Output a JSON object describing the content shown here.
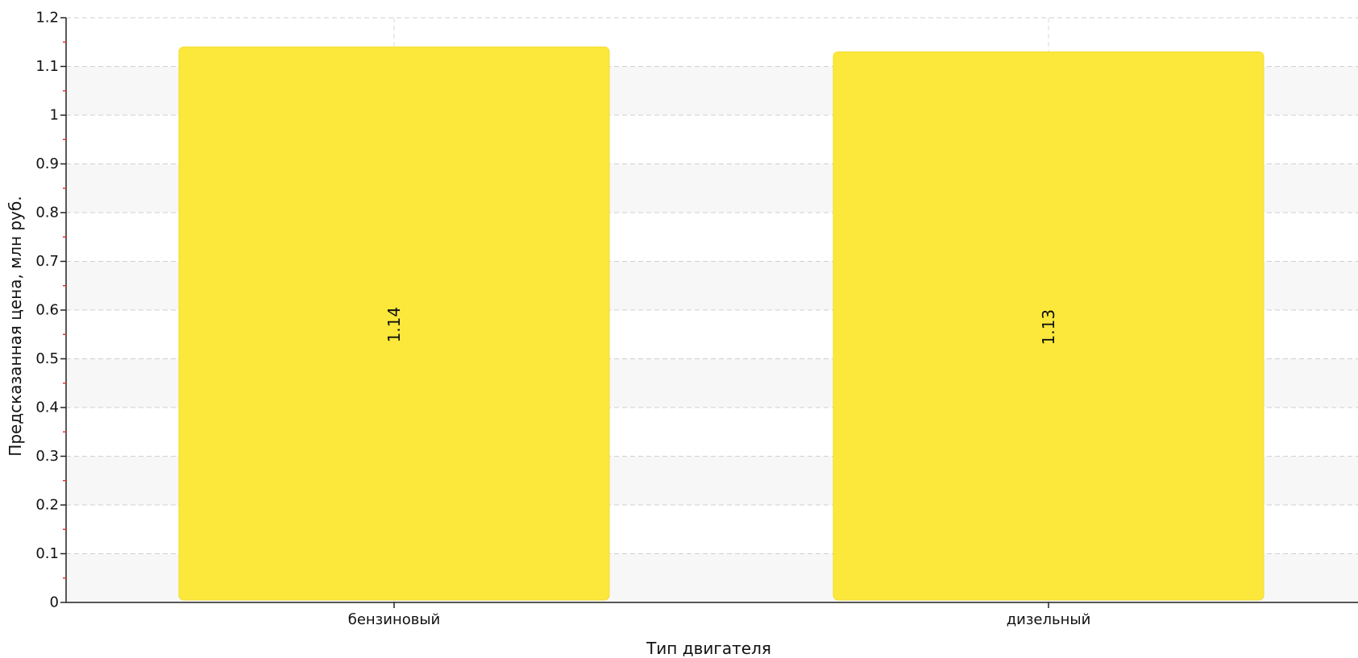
{
  "chart_data": {
    "type": "bar",
    "categories": [
      "бензиновый",
      "дизельный"
    ],
    "values": [
      1.14,
      1.13
    ],
    "data_labels": [
      "1.14",
      "1.13"
    ],
    "title": "",
    "xlabel": "Тип двигателя",
    "ylabel": "Предсказанная цена, млн руб.",
    "ylim": [
      0,
      1.2
    ],
    "yticks": [
      0,
      0.1,
      0.2,
      0.3,
      0.4,
      0.5,
      0.6,
      0.7,
      0.8,
      0.9,
      1,
      1.1,
      1.2
    ],
    "ytick_labels": [
      "0",
      "0.1",
      "0.2",
      "0.3",
      "0.4",
      "0.5",
      "0.6",
      "0.7",
      "0.8",
      "0.9",
      "1",
      "1.1",
      "1.2"
    ],
    "grid": true,
    "bar_color": "#fce83a",
    "band_color": "#f7f7f7",
    "minor_tick_color": "#e8322f"
  }
}
